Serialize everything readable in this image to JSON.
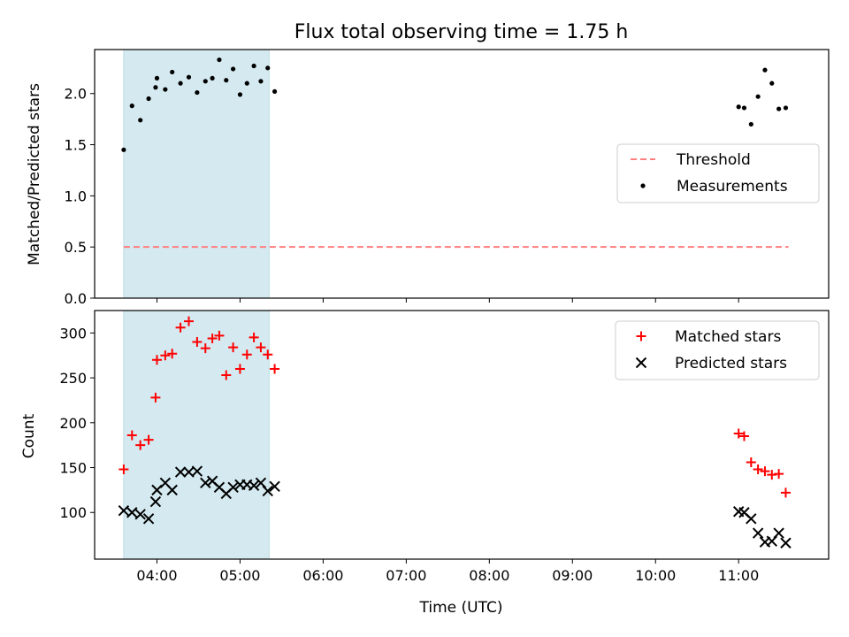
{
  "chart_data": {
    "title": "Flux total observing time = 1.75 h",
    "x_axis": {
      "label": "Time (UTC)",
      "ticks": [
        "04:00",
        "05:00",
        "06:00",
        "07:00",
        "08:00",
        "09:00",
        "10:00",
        "11:00"
      ],
      "range": [
        "03:15",
        "12:05"
      ]
    },
    "shaded_interval": {
      "from": "03:36",
      "to": "05:21",
      "color": "#d4eaf0"
    },
    "panels": [
      {
        "type": "scatter",
        "ylabel": "Matched/Predicted stars",
        "ylim": [
          0,
          2.43
        ],
        "yticks": [
          "0.0",
          "0.5",
          "1.0",
          "1.5",
          "2.0"
        ],
        "legend_position": "center-right",
        "series": [
          {
            "name": "Threshold",
            "kind": "line",
            "style": "dashed",
            "color": "#ff7f7f",
            "points": [
              [
                "03:36",
                0.5
              ],
              [
                "11:36",
                0.5
              ]
            ]
          },
          {
            "name": "Measurements",
            "kind": "dot",
            "color": "#000000",
            "points": [
              [
                "03:36",
                1.45
              ],
              [
                "03:42",
                1.88
              ],
              [
                "03:48",
                1.74
              ],
              [
                "03:54",
                1.95
              ],
              [
                "03:59",
                2.06
              ],
              [
                "04:00",
                2.15
              ],
              [
                "04:06",
                2.04
              ],
              [
                "04:11",
                2.21
              ],
              [
                "04:17",
                2.1
              ],
              [
                "04:23",
                2.16
              ],
              [
                "04:29",
                2.01
              ],
              [
                "04:35",
                2.12
              ],
              [
                "04:40",
                2.15
              ],
              [
                "04:45",
                2.33
              ],
              [
                "04:50",
                2.13
              ],
              [
                "04:55",
                2.24
              ],
              [
                "05:00",
                1.99
              ],
              [
                "05:05",
                2.1
              ],
              [
                "05:10",
                2.27
              ],
              [
                "05:15",
                2.12
              ],
              [
                "05:20",
                2.25
              ],
              [
                "05:25",
                2.02
              ],
              [
                "11:00",
                1.87
              ],
              [
                "11:04",
                1.86
              ],
              [
                "11:09",
                1.7
              ],
              [
                "11:14",
                1.97
              ],
              [
                "11:19",
                2.23
              ],
              [
                "11:24",
                2.1
              ],
              [
                "11:29",
                1.85
              ],
              [
                "11:34",
                1.86
              ]
            ]
          }
        ]
      },
      {
        "type": "scatter",
        "ylabel": "Count",
        "ylim": [
          48,
          325
        ],
        "yticks": [
          "100",
          "150",
          "200",
          "250",
          "300"
        ],
        "legend_position": "top-right",
        "series": [
          {
            "name": "Matched stars",
            "kind": "plus",
            "color": "#ff0000",
            "points": [
              [
                "03:36",
                148
              ],
              [
                "03:42",
                186
              ],
              [
                "03:48",
                175
              ],
              [
                "03:54",
                181
              ],
              [
                "03:59",
                228
              ],
              [
                "04:00",
                270
              ],
              [
                "04:06",
                275
              ],
              [
                "04:11",
                277
              ],
              [
                "04:17",
                306
              ],
              [
                "04:23",
                313
              ],
              [
                "04:29",
                290
              ],
              [
                "04:35",
                283
              ],
              [
                "04:40",
                294
              ],
              [
                "04:45",
                297
              ],
              [
                "04:50",
                253
              ],
              [
                "04:55",
                284
              ],
              [
                "05:00",
                260
              ],
              [
                "05:05",
                276
              ],
              [
                "05:10",
                295
              ],
              [
                "05:15",
                284
              ],
              [
                "05:20",
                276
              ],
              [
                "05:25",
                260
              ],
              [
                "11:00",
                188
              ],
              [
                "11:04",
                185
              ],
              [
                "11:09",
                156
              ],
              [
                "11:14",
                148
              ],
              [
                "11:19",
                146
              ],
              [
                "11:24",
                142
              ],
              [
                "11:29",
                143
              ],
              [
                "11:34",
                122
              ]
            ]
          },
          {
            "name": "Predicted stars",
            "kind": "x",
            "color": "#000000",
            "points": [
              [
                "03:36",
                102
              ],
              [
                "03:42",
                100
              ],
              [
                "03:48",
                98
              ],
              [
                "03:54",
                93
              ],
              [
                "03:59",
                112
              ],
              [
                "04:00",
                125
              ],
              [
                "04:06",
                133
              ],
              [
                "04:11",
                125
              ],
              [
                "04:17",
                145
              ],
              [
                "04:23",
                145
              ],
              [
                "04:29",
                146
              ],
              [
                "04:35",
                133
              ],
              [
                "04:40",
                135
              ],
              [
                "04:45",
                128
              ],
              [
                "04:50",
                121
              ],
              [
                "04:55",
                128
              ],
              [
                "05:00",
                131
              ],
              [
                "05:05",
                131
              ],
              [
                "05:10",
                130
              ],
              [
                "05:15",
                133
              ],
              [
                "05:20",
                124
              ],
              [
                "05:25",
                129
              ],
              [
                "11:00",
                101
              ],
              [
                "11:04",
                100
              ],
              [
                "11:09",
                93
              ],
              [
                "11:14",
                77
              ],
              [
                "11:19",
                67
              ],
              [
                "11:24",
                68
              ],
              [
                "11:29",
                77
              ],
              [
                "11:34",
                66
              ]
            ]
          }
        ]
      }
    ]
  }
}
